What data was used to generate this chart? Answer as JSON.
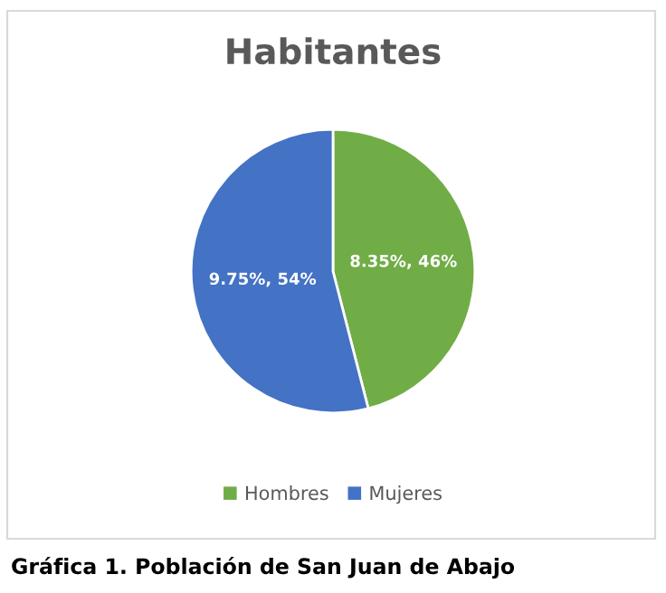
{
  "chart_data": {
    "type": "pie",
    "title": "Habitantes",
    "categories": [
      "Hombres",
      "Mujeres"
    ],
    "values": [
      46,
      54
    ],
    "colors": [
      "#70ad47",
      "#4472c4"
    ],
    "value_labels": [
      "8.35%, 46%",
      "9.75%, 54%"
    ],
    "legend": "bottom",
    "annotations": [
      "Gráfica 1. Población de San Juan de Abajo"
    ]
  }
}
